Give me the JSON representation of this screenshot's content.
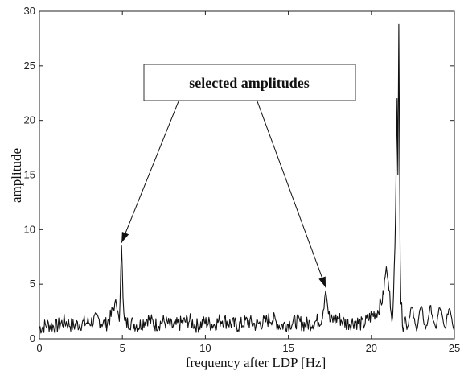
{
  "chart_data": {
    "type": "line",
    "xlabel": "frequency after LDP [Hz]",
    "ylabel": "amplitude",
    "xlim": [
      0,
      25
    ],
    "ylim": [
      0,
      30
    ],
    "x_ticks": [
      0,
      5,
      10,
      15,
      20,
      25
    ],
    "y_ticks": [
      0,
      5,
      10,
      15,
      20,
      25,
      30
    ],
    "grid": false,
    "line_color": "#111111",
    "annotation": {
      "text": "selected amplitudes",
      "targets": [
        {
          "x": 4.95,
          "y": 8.5
        },
        {
          "x": 17.25,
          "y": 4.4
        }
      ]
    },
    "peaks": [
      {
        "x": 4.6,
        "y": 3.6
      },
      {
        "x": 4.95,
        "y": 8.5
      },
      {
        "x": 17.25,
        "y": 4.4
      },
      {
        "x": 20.9,
        "y": 6.6
      },
      {
        "x": 21.55,
        "y": 22.0
      },
      {
        "x": 21.65,
        "y": 28.8
      }
    ],
    "series": [
      {
        "x": [
          0.0,
          0.5,
          1.0,
          1.5,
          2.0,
          2.5,
          3.0,
          3.5,
          4.0,
          4.3,
          4.6,
          4.8,
          4.95,
          5.1,
          5.5,
          6.0,
          6.5,
          7.0,
          7.5,
          8.0,
          8.5,
          9.0,
          9.5,
          10.0,
          10.5,
          11.0,
          11.5,
          12.0,
          12.5,
          13.0,
          13.5,
          14.0,
          14.5,
          15.0,
          15.5,
          16.0,
          16.5,
          17.0,
          17.25,
          17.5,
          18.0,
          18.5,
          19.0,
          19.5,
          20.0,
          20.4,
          20.7,
          20.9,
          21.1,
          21.3,
          21.45,
          21.55,
          21.6,
          21.65,
          21.75,
          21.9,
          22.2,
          22.5,
          23.0,
          23.5,
          24.0,
          24.5,
          25.0
        ],
        "y": [
          1.0,
          1.3,
          1.1,
          1.6,
          1.2,
          1.4,
          1.5,
          1.8,
          1.3,
          2.0,
          3.6,
          1.2,
          8.5,
          1.4,
          1.5,
          1.2,
          1.9,
          1.3,
          1.6,
          1.1,
          1.4,
          1.7,
          1.2,
          1.5,
          1.3,
          1.8,
          1.4,
          1.2,
          1.6,
          1.3,
          1.5,
          1.9,
          1.2,
          1.4,
          1.6,
          1.3,
          1.5,
          1.8,
          4.4,
          1.6,
          1.9,
          1.4,
          1.6,
          1.3,
          2.1,
          2.6,
          3.8,
          6.6,
          4.0,
          1.5,
          11.0,
          22.0,
          15.0,
          28.8,
          4.0,
          1.3,
          2.4,
          2.0,
          2.8,
          1.9,
          2.6,
          2.2,
          2.7
        ]
      }
    ]
  }
}
